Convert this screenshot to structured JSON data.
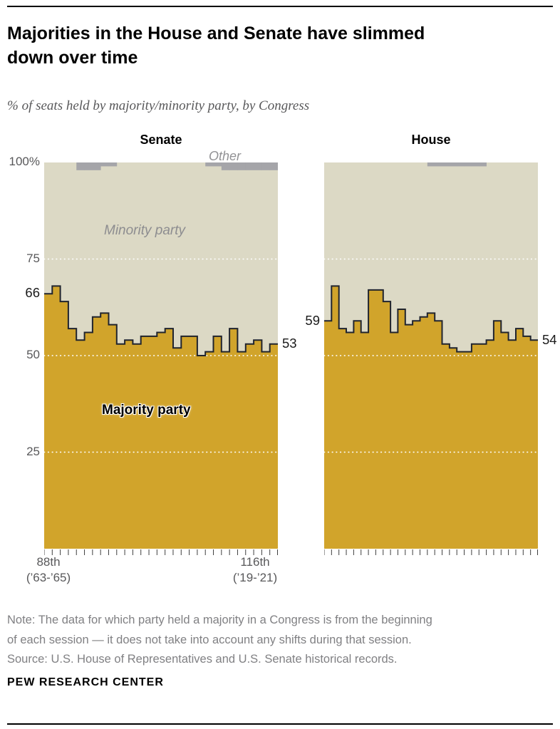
{
  "header": {
    "title_lines": [
      "Majorities in the House and Senate have slimmed",
      "down over time"
    ],
    "subtitle": "% of seats held by majority/minority party, by Congress"
  },
  "axis": {
    "y_ticks": [
      "100%",
      "75",
      "50",
      "25"
    ],
    "x_left": [
      "88th",
      "(’63-’65)"
    ],
    "x_right": [
      "116th",
      "(’19-’21)"
    ]
  },
  "annotations": {
    "other": "Other",
    "minority": "Minority party",
    "majority": "Majority party"
  },
  "colors": {
    "majority": "#d1a42b",
    "minority": "#dcd9c5",
    "other": "#a5a5a9",
    "line": "#20242e",
    "grid": "#ffffff"
  },
  "chart_data": [
    {
      "type": "area",
      "panel": "Senate",
      "ylim": [
        0,
        100
      ],
      "gridlines": [
        25,
        50,
        75
      ],
      "categories": [
        "88th",
        "89th",
        "90th",
        "91st",
        "92nd",
        "93rd",
        "94th",
        "95th",
        "96th",
        "97th",
        "98th",
        "99th",
        "100th",
        "101st",
        "102nd",
        "103rd",
        "104th",
        "105th",
        "106th",
        "107th",
        "108th",
        "109th",
        "110th",
        "111th",
        "112th",
        "113th",
        "114th",
        "115th",
        "116th"
      ],
      "series": [
        {
          "name": "Majority party",
          "values": [
            66,
            68,
            64,
            57,
            54,
            56,
            60,
            61,
            58,
            53,
            54,
            53,
            55,
            55,
            56,
            57,
            52,
            55,
            55,
            50,
            51,
            55,
            51,
            57,
            51,
            53,
            54,
            51,
            53
          ]
        },
        {
          "name": "Minority party",
          "values": [
            34,
            32,
            36,
            43,
            44,
            42,
            38,
            38,
            41,
            47,
            46,
            47,
            45,
            45,
            44,
            43,
            48,
            45,
            45,
            50,
            48,
            44,
            47,
            41,
            47,
            45,
            44,
            47,
            45
          ]
        },
        {
          "name": "Other",
          "values": [
            0,
            0,
            0,
            0,
            2,
            2,
            2,
            1,
            1,
            0,
            0,
            0,
            0,
            0,
            0,
            0,
            0,
            0,
            0,
            0,
            1,
            1,
            2,
            2,
            2,
            2,
            2,
            2,
            2
          ]
        }
      ],
      "labels": {
        "start": "66",
        "end": "53"
      }
    },
    {
      "type": "area",
      "panel": "House",
      "ylim": [
        0,
        100
      ],
      "gridlines": [
        25,
        50,
        75
      ],
      "categories": [
        "88th",
        "89th",
        "90th",
        "91st",
        "92nd",
        "93rd",
        "94th",
        "95th",
        "96th",
        "97th",
        "98th",
        "99th",
        "100th",
        "101st",
        "102nd",
        "103rd",
        "104th",
        "105th",
        "106th",
        "107th",
        "108th",
        "109th",
        "110th",
        "111th",
        "112th",
        "113th",
        "114th",
        "115th",
        "116th"
      ],
      "series": [
        {
          "name": "Majority party",
          "values": [
            59,
            68,
            57,
            56,
            59,
            56,
            67,
            67,
            64,
            56,
            62,
            58,
            59,
            60,
            61,
            59,
            53,
            52,
            51,
            51,
            53,
            53,
            54,
            59,
            56,
            54,
            57,
            55,
            54
          ]
        },
        {
          "name": "Minority party",
          "values": [
            41,
            32,
            43,
            44,
            41,
            44,
            33,
            33,
            36,
            44,
            38,
            42,
            41,
            40,
            38,
            40,
            46,
            47,
            48,
            48,
            46,
            46,
            46,
            41,
            44,
            46,
            43,
            45,
            46
          ]
        },
        {
          "name": "Other",
          "values": [
            0,
            0,
            0,
            0,
            0,
            0,
            0,
            0,
            0,
            0,
            0,
            0,
            0,
            0,
            1,
            1,
            1,
            1,
            1,
            1,
            1,
            1,
            0,
            0,
            0,
            0,
            0,
            0,
            0
          ]
        }
      ],
      "labels": {
        "start": "59",
        "end": "54"
      }
    }
  ],
  "note": {
    "line1": "Note: The data for which party held a majority in a Congress is from the beginning",
    "line2": "of each session — it does not take into account any shifts during that session.",
    "line3": "Source: U.S. House of Representatives and U.S. Senate historical records."
  },
  "footer": "PEW RESEARCH CENTER"
}
